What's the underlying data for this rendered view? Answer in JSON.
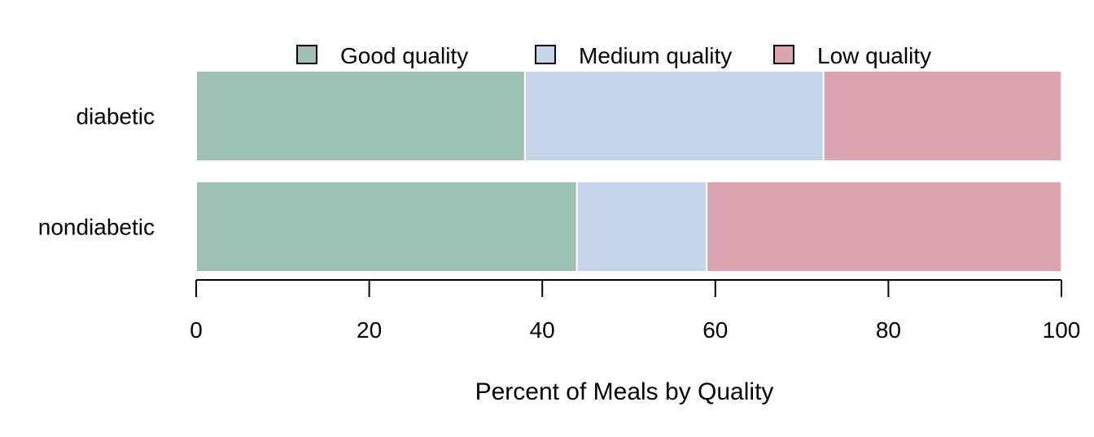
{
  "chart_data": {
    "type": "bar",
    "orientation": "horizontal",
    "stacked": true,
    "categories": [
      "diabetic",
      "nondiabetic"
    ],
    "series": [
      {
        "name": "Good quality",
        "values": [
          38,
          44
        ],
        "color": "#9fc1b5"
      },
      {
        "name": "Medium quality",
        "values": [
          34.5,
          15
        ],
        "color": "#c6d5ea"
      },
      {
        "name": "Low quality",
        "values": [
          27.5,
          41
        ],
        "color": "#daa4b0"
      }
    ],
    "xlabel": "Percent of Meals by Quality",
    "xlim": [
      0,
      100
    ],
    "xticks": [
      0,
      20,
      40,
      60,
      80,
      100
    ],
    "legend_position": "top",
    "grid": false
  }
}
